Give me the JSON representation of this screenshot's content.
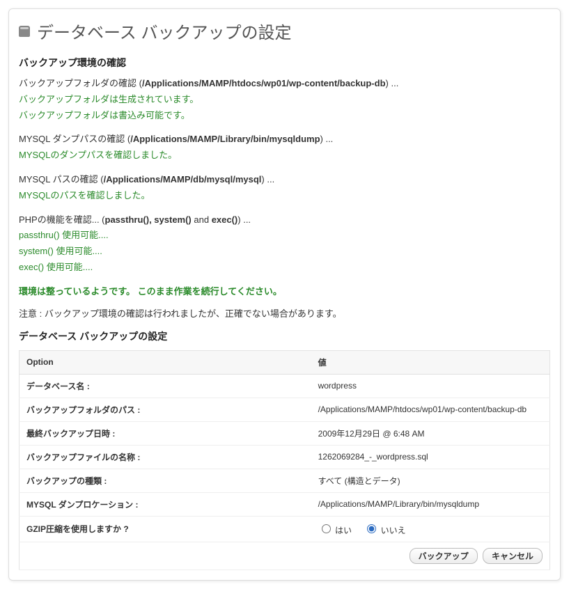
{
  "header": {
    "title": "データベース バックアップの設定"
  },
  "env": {
    "heading": "バックアップ環境の確認",
    "folder": {
      "label": "バックアップフォルダの確認 (",
      "path": "/Applications/MAMP/htdocs/wp01/wp-content/backup-db",
      "tail": ") ...",
      "msg1": "バックアップフォルダは生成されています。",
      "msg2": "バックアップフォルダは書込み可能です。"
    },
    "dump": {
      "label": "MYSQL ダンプパスの確認 (",
      "path": "/Applications/MAMP/Library/bin/mysqldump",
      "tail": ") ...",
      "msg": "MYSQLのダンプパスを確認しました。"
    },
    "mysql": {
      "label": "MYSQL パスの確認 (",
      "path": "/Applications/MAMP/db/mysql/mysql",
      "tail": ") ...",
      "msg": "MYSQLのパスを確認しました。"
    },
    "php": {
      "label": "PHPの機能を確認... (",
      "funcs": "passthru(), system()",
      "mid": " and ",
      "func3": "exec()",
      "tail": ") ...",
      "msg1": "passthru() 使用可能....",
      "msg2": "system() 使用可能....",
      "msg3": "exec() 使用可能...."
    },
    "ok": "環境は整っているようです。 このまま作業を続行してください。",
    "note": "注意 :   バックアップ環境の確認は行われましたが、正確でない場合があります。"
  },
  "settings": {
    "heading": "データベース バックアップの設定",
    "columns": {
      "option": "Option",
      "value": "値"
    },
    "rows": [
      {
        "k": "データベース名 :",
        "v": "wordpress"
      },
      {
        "k": "バックアップフォルダのパス :",
        "v": "/Applications/MAMP/htdocs/wp01/wp-content/backup-db"
      },
      {
        "k": "最終バックアップ日時 :",
        "v": "2009年12月29日 @ 6:48 AM"
      },
      {
        "k": "バックアップファイルの名称 :",
        "v": "1262069284_-_wordpress.sql"
      },
      {
        "k": "バックアップの種類 :",
        "v": "すべて (構造とデータ)"
      },
      {
        "k": "MYSQL ダンプロケーション :",
        "v": "/Applications/MAMP/Library/bin/mysqldump"
      }
    ],
    "gzip": {
      "label": "GZIP圧縮を使用しますか ?",
      "yes": "はい",
      "no": "いいえ",
      "selected": "no"
    },
    "buttons": {
      "backup": "バックアップ",
      "cancel": "キャンセル"
    }
  },
  "colors": {
    "green": "#2a8a2a",
    "border": "#e4e4e4",
    "header_bg": "#f7f7f7"
  }
}
